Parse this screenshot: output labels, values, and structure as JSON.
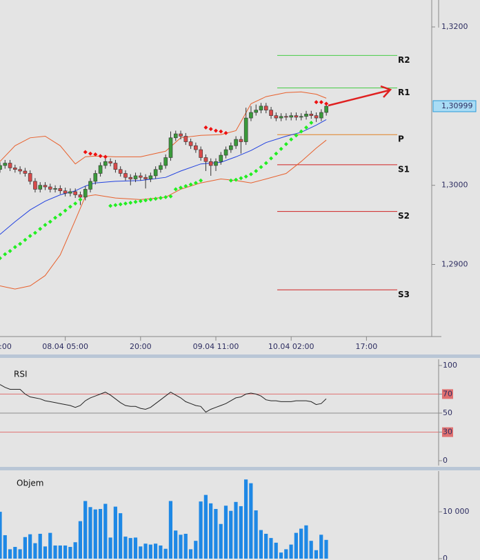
{
  "chart_data": [
    {
      "type": "candlestick",
      "x": [
        -13,
        -12,
        -11,
        -10,
        -9,
        -8,
        -7,
        -6,
        -5,
        -4,
        -3,
        -2,
        -1,
        0,
        1,
        2,
        3,
        4,
        5,
        6,
        7,
        8,
        9,
        10,
        11,
        12,
        13,
        14,
        15,
        16,
        17,
        18,
        19,
        20,
        21,
        22,
        23,
        24,
        25,
        26,
        27,
        28,
        29,
        30,
        31,
        32,
        33,
        34,
        35,
        36,
        37,
        38,
        39,
        40,
        41,
        42,
        43,
        44,
        45,
        46,
        47,
        48,
        49,
        50,
        51,
        52
      ],
      "open": [
        1.302,
        1.3025,
        1.3028,
        1.3022,
        1.302,
        1.3018,
        1.3015,
        1.3005,
        1.2995,
        1.3,
        1.2998,
        1.2995,
        1.2996,
        1.2993,
        1.299,
        1.2992,
        1.2988,
        1.2985,
        1.2995,
        1.3005,
        1.3015,
        1.3025,
        1.303,
        1.3028,
        1.302,
        1.3015,
        1.301,
        1.3008,
        1.3012,
        1.301,
        1.3008,
        1.3012,
        1.302,
        1.3025,
        1.3035,
        1.306,
        1.3065,
        1.3062,
        1.3055,
        1.305,
        1.3045,
        1.3035,
        1.303,
        1.3025,
        1.303,
        1.3038,
        1.3045,
        1.305,
        1.3058,
        1.3055,
        1.3085,
        1.3092,
        1.3095,
        1.31,
        1.3095,
        1.3088,
        1.3085,
        1.3087,
        1.3086,
        1.3088,
        1.3086,
        1.3087,
        1.309,
        1.3088,
        1.3085,
        1.3092
      ],
      "high": [
        1.3029,
        1.3032,
        1.3032,
        1.3026,
        1.3024,
        1.3022,
        1.3019,
        1.3009,
        1.3004,
        1.3004,
        1.3002,
        1.3,
        1.3,
        1.2997,
        1.2996,
        1.2996,
        1.2992,
        1.2999,
        1.3009,
        1.3019,
        1.3029,
        1.3038,
        1.3034,
        1.3032,
        1.3024,
        1.3019,
        1.3014,
        1.3016,
        1.3016,
        1.3014,
        1.3016,
        1.3024,
        1.3029,
        1.3039,
        1.3068,
        1.3069,
        1.3069,
        1.3066,
        1.3059,
        1.3054,
        1.3049,
        1.3039,
        1.3034,
        1.3034,
        1.3042,
        1.3049,
        1.3054,
        1.3062,
        1.3062,
        1.3098,
        1.31,
        1.3102,
        1.3104,
        1.3104,
        1.3099,
        1.3092,
        1.3091,
        1.3091,
        1.3092,
        1.3092,
        1.3091,
        1.3094,
        1.3094,
        1.3092,
        1.3096,
        1.3104
      ],
      "low": [
        1.3016,
        1.3021,
        1.3018,
        1.3016,
        1.3014,
        1.3011,
        1.3001,
        1.2991,
        1.2991,
        1.2994,
        1.2991,
        1.2991,
        1.2989,
        1.2986,
        1.2986,
        1.2984,
        1.2975,
        1.2981,
        1.2991,
        1.3001,
        1.3011,
        1.3021,
        1.3024,
        1.3016,
        1.3011,
        1.3006,
        1.3,
        1.3004,
        1.3006,
        1.2996,
        1.3004,
        1.3008,
        1.3016,
        1.3021,
        1.3031,
        1.3056,
        1.3058,
        1.3051,
        1.3046,
        1.3041,
        1.3031,
        1.3018,
        1.3012,
        1.3018,
        1.3026,
        1.3034,
        1.3041,
        1.3046,
        1.304,
        1.3051,
        1.3081,
        1.3088,
        1.3091,
        1.3091,
        1.3084,
        1.3081,
        1.3081,
        1.3082,
        1.3082,
        1.3082,
        1.3082,
        1.3083,
        1.3084,
        1.308,
        1.3081,
        1.3088
      ],
      "close": [
        1.3025,
        1.3028,
        1.3022,
        1.302,
        1.3018,
        1.3015,
        1.3005,
        1.2995,
        1.3,
        1.2998,
        1.2995,
        1.2996,
        1.2993,
        1.299,
        1.2992,
        1.2988,
        1.2985,
        1.2995,
        1.3005,
        1.3015,
        1.3025,
        1.303,
        1.3028,
        1.302,
        1.3015,
        1.301,
        1.3008,
        1.3012,
        1.301,
        1.3008,
        1.3012,
        1.302,
        1.3025,
        1.3035,
        1.306,
        1.3065,
        1.3062,
        1.3055,
        1.305,
        1.3045,
        1.3035,
        1.303,
        1.3025,
        1.303,
        1.3038,
        1.3045,
        1.305,
        1.3058,
        1.3055,
        1.3085,
        1.3092,
        1.3095,
        1.31,
        1.3095,
        1.3088,
        1.3085,
        1.3087,
        1.3086,
        1.3088,
        1.3086,
        1.3087,
        1.309,
        1.3088,
        1.3085,
        1.3092,
        1.30999
      ],
      "up_color": "#3a9a3a",
      "down_color": "#d84a4a",
      "xlim": [
        -13,
        73
      ],
      "xticks": [
        {
          "value": -15,
          "label": ":00"
        },
        {
          "value": 0,
          "label": "08.04 05:00"
        },
        {
          "value": 15,
          "label": "20:00"
        },
        {
          "value": 30,
          "label": "09.04 11:00"
        },
        {
          "value": 45,
          "label": "10.04 02:00"
        },
        {
          "value": 60,
          "label": "17:00"
        }
      ],
      "ylim": [
        1.2809,
        1.3234
      ],
      "yticks": [
        {
          "value": 1.29,
          "label": "1,2900"
        },
        {
          "value": 1.3,
          "label": "1,3000"
        },
        {
          "value": 1.32,
          "label": "1,3200"
        }
      ],
      "lines": {
        "x": [
          -13,
          -10,
          -7,
          -4,
          -1,
          2,
          4,
          6,
          10,
          15,
          20,
          23,
          27,
          31,
          34,
          37,
          40,
          44,
          47,
          50,
          52
        ],
        "series": [
          {
            "color": "#e8602c",
            "values": [
              1.303,
              1.305,
              1.306,
              1.3062,
              1.305,
              1.3027,
              1.3036,
              1.3037,
              1.3036,
              1.3036,
              1.3043,
              1.306,
              1.3063,
              1.3064,
              1.3069,
              1.3103,
              1.3112,
              1.3117,
              1.3118,
              1.3115,
              1.311
            ]
          },
          {
            "color": "#e8602c",
            "values": [
              1.2873,
              1.2869,
              1.2873,
              1.2886,
              1.2912,
              1.2956,
              1.2986,
              1.2988,
              1.2984,
              1.2982,
              1.2985,
              1.2995,
              1.3003,
              1.3008,
              1.3006,
              1.3003,
              1.3008,
              1.3015,
              1.303,
              1.3047,
              1.3057
            ]
          },
          {
            "color": "#2040e0",
            "values": [
              1.2938,
              1.2954,
              1.2969,
              1.298,
              1.2988,
              1.2993,
              1.2999,
              1.3003,
              1.3005,
              1.3006,
              1.301,
              1.3018,
              1.3027,
              1.3029,
              1.3036,
              1.3044,
              1.3054,
              1.3062,
              1.3067,
              1.3076,
              1.3083
            ]
          }
        ]
      },
      "sar": [
        {
          "color": "#22ee22",
          "x": [
            -13,
            -12,
            -11,
            -10,
            -9,
            -8,
            -7,
            -6,
            -5,
            -4,
            -3,
            -2,
            -1,
            0,
            1,
            2,
            3,
            9,
            10,
            11,
            12,
            13,
            14,
            15,
            16,
            17,
            18,
            19,
            20,
            21,
            22,
            23,
            24,
            25,
            26,
            27,
            33,
            34,
            35,
            36,
            37,
            38,
            39,
            40,
            41,
            42,
            43,
            44,
            45,
            46,
            47,
            48,
            49
          ],
          "values": [
            1.2908,
            1.2913,
            1.2917,
            1.2922,
            1.2926,
            1.2931,
            1.2936,
            1.294,
            1.2945,
            1.295,
            1.2954,
            1.2959,
            1.2963,
            1.2968,
            1.2973,
            1.2977,
            1.2982,
            1.2974,
            1.2975,
            1.2976,
            1.2977,
            1.2978,
            1.2979,
            1.298,
            1.2981,
            1.2982,
            1.2983,
            1.2984,
            1.2985,
            1.2986,
            1.2995,
            1.2997,
            1.2999,
            1.3001,
            1.3003,
            1.3006,
            1.3006,
            1.3007,
            1.3009,
            1.3011,
            1.3014,
            1.3018,
            1.3023,
            1.3028,
            1.3034,
            1.304,
            1.3046,
            1.3052,
            1.3058,
            1.3063,
            1.3068,
            1.3073,
            1.3079
          ]
        },
        {
          "color": "#ee1111",
          "x": [
            4,
            5,
            6,
            7,
            8,
            28,
            29,
            30,
            31,
            32,
            50,
            51,
            52
          ],
          "values": [
            1.3042,
            1.304,
            1.3039,
            1.3037,
            1.3036,
            1.3073,
            1.3071,
            1.3069,
            1.3068,
            1.3066,
            1.3105,
            1.3105,
            1.3103
          ]
        }
      ],
      "pivots": [
        {
          "label": "R2",
          "value": 1.3164,
          "color": "#44cc44"
        },
        {
          "label": "R1",
          "value": 1.3123,
          "color": "#44cc44"
        },
        {
          "label": "P",
          "value": 1.3064,
          "color": "#e08020"
        },
        {
          "label": "S1",
          "value": 1.3026,
          "color": "#d02020"
        },
        {
          "label": "S2",
          "value": 1.2967,
          "color": "#d02020"
        },
        {
          "label": "S3",
          "value": 1.2868,
          "color": "#d02020"
        }
      ],
      "last_price": {
        "value": 1.30999,
        "label": "1,30999"
      }
    },
    {
      "type": "line",
      "title": "RSI",
      "color": "#222222",
      "x": [
        -13,
        -12,
        -11,
        -10,
        -9,
        -8,
        -7,
        -6,
        -5,
        -4,
        -3,
        -2,
        -1,
        0,
        1,
        2,
        3,
        4,
        5,
        6,
        7,
        8,
        9,
        10,
        11,
        12,
        13,
        14,
        15,
        16,
        17,
        18,
        19,
        20,
        21,
        22,
        23,
        24,
        25,
        26,
        27,
        28,
        29,
        30,
        31,
        32,
        33,
        34,
        35,
        36,
        37,
        38,
        39,
        40,
        41,
        42,
        43,
        44,
        45,
        46,
        47,
        48,
        49,
        50,
        51,
        52
      ],
      "values": [
        80,
        77,
        75,
        75,
        75,
        70,
        67,
        66,
        65,
        63,
        62,
        61,
        60,
        59,
        58,
        56,
        58,
        63,
        66,
        68,
        70,
        72,
        69,
        65,
        61,
        58,
        57,
        57,
        55,
        54,
        56,
        60,
        64,
        68,
        72,
        69,
        66,
        62,
        60,
        58,
        57,
        51,
        54,
        56,
        58,
        60,
        63,
        66,
        67,
        70,
        71,
        70,
        68,
        64,
        63,
        63,
        62,
        62,
        62,
        63,
        63,
        63,
        62,
        59,
        60,
        65
      ],
      "xlim": [
        -13,
        74.4
      ],
      "ylim": [
        0,
        100
      ],
      "yticks": [
        0,
        30,
        50,
        70,
        100
      ],
      "ref_lines": [
        {
          "value": 70,
          "color": "#e07070"
        },
        {
          "value": 50,
          "color": "#8c8c8c"
        },
        {
          "value": 30,
          "color": "#e07070"
        }
      ]
    },
    {
      "type": "bar",
      "title": "Objem",
      "color": "#1e88e5",
      "x": [
        -13,
        -12,
        -11,
        -10,
        -9,
        -8,
        -7,
        -6,
        -5,
        -4,
        -3,
        -2,
        -1,
        0,
        1,
        2,
        3,
        4,
        5,
        6,
        7,
        8,
        9,
        10,
        11,
        12,
        13,
        14,
        15,
        16,
        17,
        18,
        19,
        20,
        21,
        22,
        23,
        24,
        25,
        26,
        27,
        28,
        29,
        30,
        31,
        32,
        33,
        34,
        35,
        36,
        37,
        38,
        39,
        40,
        41,
        42,
        43,
        44,
        45,
        46,
        47,
        48,
        49,
        50,
        51,
        52
      ],
      "values": [
        10000,
        5000,
        2000,
        2500,
        2000,
        4600,
        5200,
        3300,
        5300,
        2600,
        5500,
        2800,
        2800,
        2800,
        2500,
        3500,
        8000,
        12300,
        11000,
        10500,
        10600,
        11700,
        4500,
        11100,
        9700,
        4700,
        4400,
        4500,
        2600,
        3200,
        3000,
        3200,
        2800,
        2100,
        12300,
        6000,
        5100,
        5300,
        2000,
        3800,
        12200,
        13600,
        11800,
        10600,
        7400,
        11300,
        10200,
        12100,
        11200,
        16900,
        16100,
        10300,
        6100,
        5300,
        4400,
        3400,
        1300,
        2000,
        3000,
        5500,
        6400,
        7100,
        3800,
        1800,
        5100,
        4000
      ],
      "xlim": [
        -13,
        74.4
      ],
      "ylim": [
        0,
        18700
      ],
      "yticks": [
        0,
        {
          "value": 10000,
          "label": "10 000"
        }
      ]
    }
  ]
}
